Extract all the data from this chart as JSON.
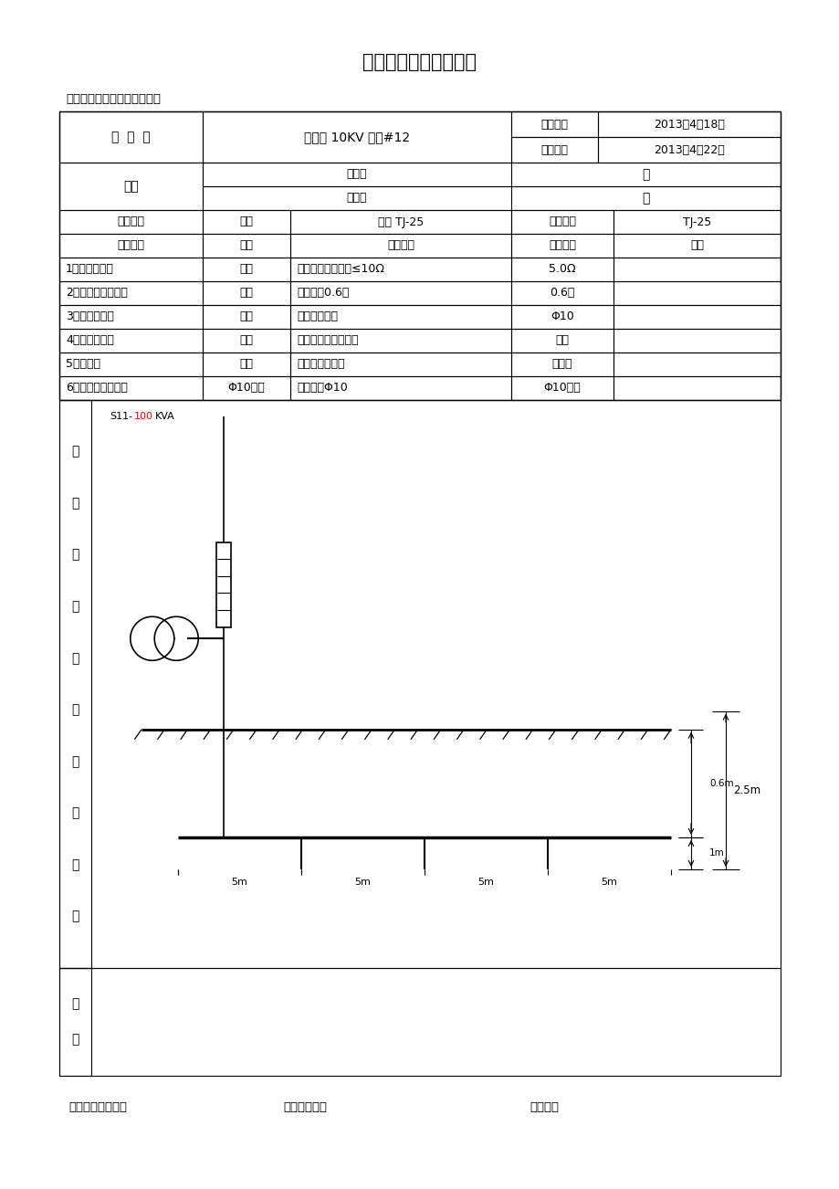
{
  "title": "接地装置施工检查记录",
  "project_name": "工程名称：石燕桥嘉漠村工程",
  "tower_no": "杆  塔  号",
  "tower_val": "嘉漠村 10KV 支线#12",
  "construction_time_label": "施工时间",
  "construction_time_val": "2013年4月18日",
  "inspection_time_label": "检测时间",
  "inspection_time_val": "2013年4月22日",
  "weather_label": "气候",
  "weather_measure_label": "测量时",
  "weather_measure_val": "晴",
  "weather_construct_label": "施工时",
  "weather_construct_val": "晴",
  "ground_form_label": "接地形式",
  "ground_form_design_label": "设计",
  "ground_form_design_val": "线型 TJ-25",
  "ground_form_construct_label": "施工线型",
  "ground_form_construct_val": "TJ-25",
  "check_item_label": "检查项目",
  "nature_label": "性质",
  "quality_std_label": "质量标准",
  "check_result_label": "检查结果",
  "conclusion_label": "结论",
  "rows": [
    {
      "item": "1、接地电阻值",
      "nature": "关键",
      "standard": "设计值：规程要求≤10Ω",
      "result": "5.0Ω",
      "conclusion": ""
    },
    {
      "item": "2、接地体埋深高度",
      "nature": "一般",
      "standard": "设计值：0.6米",
      "result": "0.6米",
      "conclusion": ""
    },
    {
      "item": "3、引下线安装",
      "nature": "一般",
      "standard": "符合规范要求",
      "result": "Φ10",
      "conclusion": ""
    },
    {
      "item": "4、引下线安装",
      "nature": "一般",
      "standard": "接地良好，工艺美观",
      "result": "符合",
      "conclusion": ""
    },
    {
      "item": "5、回填土",
      "nature": "一般",
      "standard": "按规范要求施工",
      "result": "已夯实",
      "conclusion": ""
    },
    {
      "item": "6、接地带材料规格",
      "nature": "Φ10圆钢",
      "standard": "设计值：Φ10",
      "result": "Φ10圆钢",
      "conclusion": ""
    }
  ],
  "diagram_chars": [
    "接",
    "地",
    "装",
    "置",
    "实",
    "际",
    "敷",
    "设",
    "简",
    "图"
  ],
  "note_chars": [
    "备",
    "注"
  ],
  "s11_black1": "S11-",
  "s11_red": "100",
  "s11_black2": "KVA",
  "footer1": "现场技术负责人：",
  "footer2": "施工负责人：",
  "footer3": "检查人：",
  "bg_color": "#ffffff",
  "line_color": "#000000",
  "text_color": "#000000",
  "red_color": "#ff0000"
}
